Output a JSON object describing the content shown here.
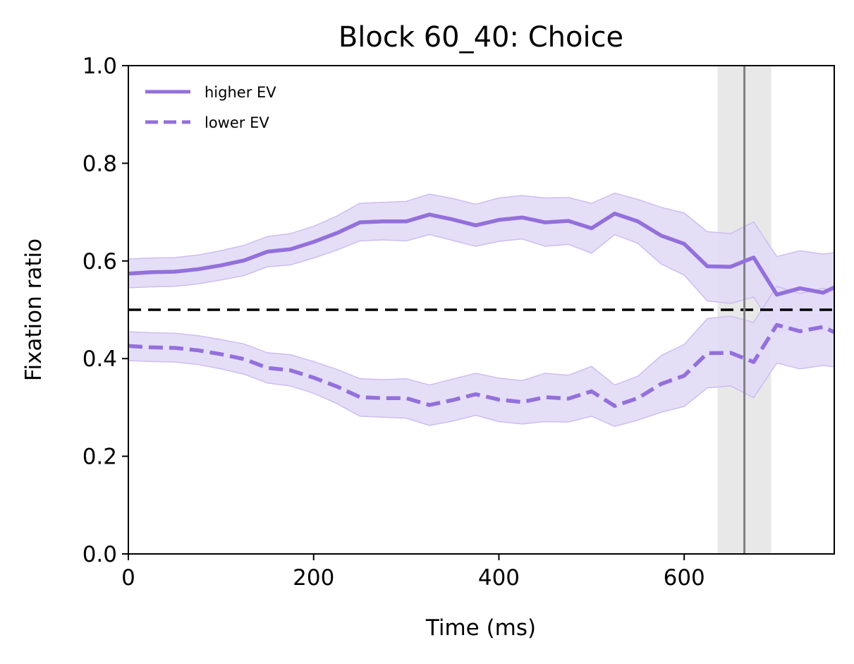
{
  "chart_data": {
    "type": "line",
    "title": "Block 60_40: Choice",
    "xlabel": "Time (ms)",
    "ylabel": "Fixation ratio",
    "xlim": [
      0,
      762
    ],
    "ylim": [
      0,
      1.0
    ],
    "xticks": [
      0,
      200,
      400,
      600
    ],
    "yticks": [
      0.0,
      0.2,
      0.4,
      0.6,
      0.8,
      1.0
    ],
    "xtick_labels": [
      "0",
      "200",
      "400",
      "600"
    ],
    "ytick_labels": [
      "0.0",
      "0.2",
      "0.4",
      "0.6",
      "0.8",
      "1.0"
    ],
    "grid": false,
    "legend_position": "top-left",
    "series_color": "#9370DB",
    "band_color": "#E2DAF6",
    "reference_line": {
      "y": 0.5,
      "color": "#000000",
      "style": "dashed"
    },
    "vertical_line": {
      "x": 665,
      "color": "#808080"
    },
    "shaded_region": {
      "x_start": 636,
      "x_end": 694,
      "color": "#E8E8E8"
    },
    "x": [
      0,
      25,
      50,
      75,
      100,
      125,
      150,
      175,
      200,
      225,
      250,
      275,
      300,
      325,
      350,
      375,
      400,
      425,
      450,
      475,
      500,
      525,
      550,
      575,
      600,
      625,
      650,
      675,
      700,
      725,
      750,
      762
    ],
    "series": [
      {
        "name": "higher EV",
        "style": "solid",
        "values": [
          0.574,
          0.577,
          0.578,
          0.583,
          0.591,
          0.601,
          0.619,
          0.624,
          0.639,
          0.657,
          0.679,
          0.681,
          0.681,
          0.695,
          0.685,
          0.673,
          0.684,
          0.689,
          0.679,
          0.682,
          0.667,
          0.697,
          0.681,
          0.652,
          0.635,
          0.589,
          0.588,
          0.607,
          0.531,
          0.544,
          0.535,
          0.546
        ],
        "lower": [
          0.545,
          0.547,
          0.548,
          0.553,
          0.561,
          0.57,
          0.588,
          0.592,
          0.606,
          0.622,
          0.641,
          0.643,
          0.641,
          0.654,
          0.642,
          0.63,
          0.64,
          0.645,
          0.63,
          0.634,
          0.616,
          0.654,
          0.636,
          0.594,
          0.571,
          0.518,
          0.513,
          0.526,
          0.452,
          0.467,
          0.456,
          0.462
        ],
        "upper": [
          0.604,
          0.606,
          0.607,
          0.612,
          0.621,
          0.632,
          0.65,
          0.656,
          0.671,
          0.692,
          0.718,
          0.72,
          0.722,
          0.737,
          0.728,
          0.716,
          0.729,
          0.734,
          0.729,
          0.73,
          0.718,
          0.739,
          0.726,
          0.71,
          0.698,
          0.66,
          0.656,
          0.68,
          0.609,
          0.621,
          0.614,
          0.617
        ]
      },
      {
        "name": "lower EV",
        "style": "dashed",
        "values": [
          0.426,
          0.423,
          0.422,
          0.417,
          0.409,
          0.399,
          0.381,
          0.376,
          0.361,
          0.343,
          0.321,
          0.319,
          0.319,
          0.305,
          0.315,
          0.327,
          0.316,
          0.311,
          0.321,
          0.318,
          0.333,
          0.303,
          0.319,
          0.348,
          0.365,
          0.411,
          0.412,
          0.393,
          0.469,
          0.456,
          0.465,
          0.454
        ],
        "lower": [
          0.396,
          0.394,
          0.393,
          0.388,
          0.379,
          0.368,
          0.35,
          0.344,
          0.329,
          0.308,
          0.282,
          0.28,
          0.278,
          0.263,
          0.272,
          0.284,
          0.271,
          0.266,
          0.271,
          0.27,
          0.282,
          0.261,
          0.274,
          0.29,
          0.302,
          0.34,
          0.344,
          0.32,
          0.391,
          0.379,
          0.386,
          0.383
        ],
        "upper": [
          0.455,
          0.453,
          0.452,
          0.447,
          0.439,
          0.43,
          0.412,
          0.408,
          0.394,
          0.378,
          0.359,
          0.357,
          0.359,
          0.346,
          0.358,
          0.37,
          0.36,
          0.355,
          0.37,
          0.366,
          0.384,
          0.346,
          0.364,
          0.406,
          0.429,
          0.482,
          0.487,
          0.474,
          0.548,
          0.533,
          0.544,
          0.538
        ]
      }
    ]
  }
}
